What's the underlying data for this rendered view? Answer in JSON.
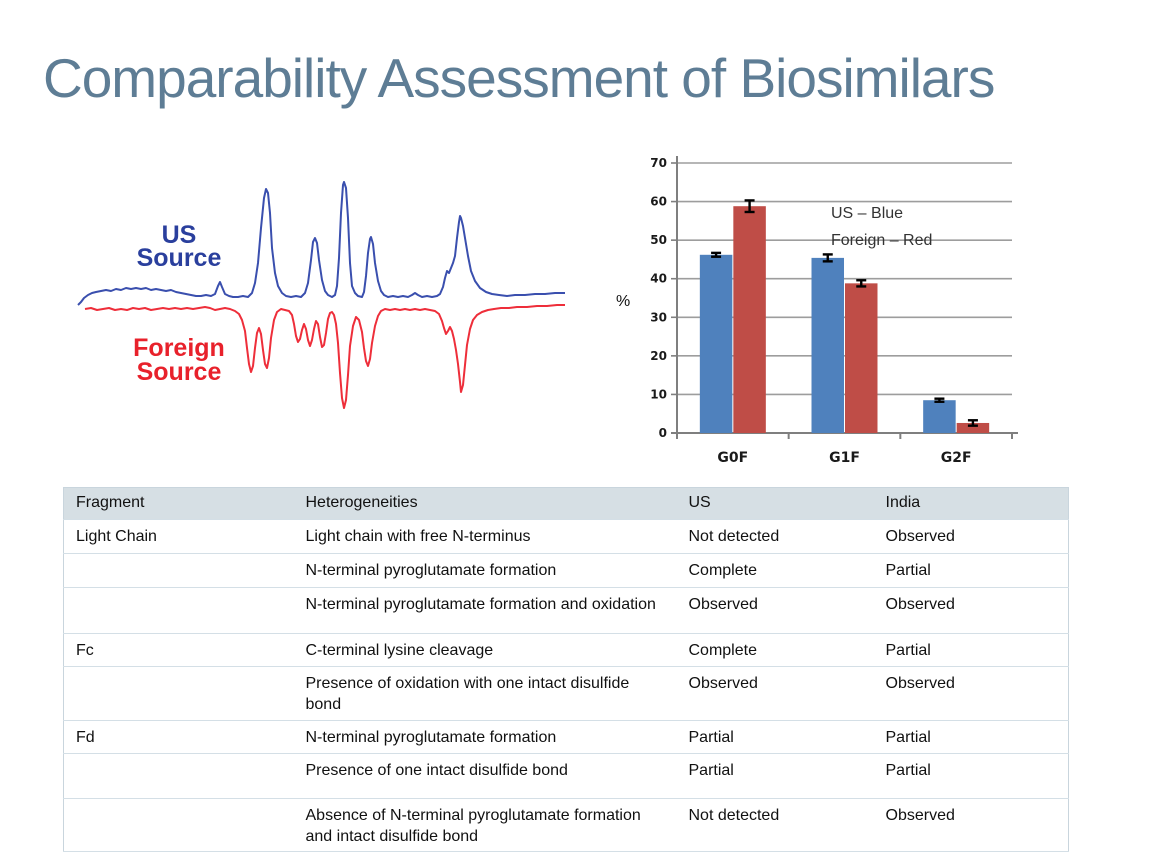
{
  "slide": {
    "title": "Comparability Assessment of Biosimilars"
  },
  "chromatogram": {
    "us_label_line1": "US",
    "us_label_line2": "Source",
    "foreign_label_line1": "Foreign",
    "foreign_label_line2": "Source",
    "us_color": "#2a3f9d",
    "foreign_color": "#e8212b"
  },
  "chart_data": {
    "type": "bar",
    "title": "",
    "xlabel": "",
    "ylabel": "%",
    "categories": [
      "G0F",
      "G1F",
      "G2F"
    ],
    "series": [
      {
        "name": "US",
        "color": "#4f81bd",
        "values": [
          46.2,
          45.4,
          8.5
        ],
        "errors": [
          0.5,
          0.9,
          0.4
        ]
      },
      {
        "name": "Foreign",
        "color": "#bf4d47",
        "values": [
          58.8,
          38.8,
          2.6
        ],
        "errors": [
          1.5,
          0.8,
          0.7
        ]
      }
    ],
    "ylim": [
      0,
      70
    ],
    "yticks": [
      0,
      10,
      20,
      30,
      40,
      50,
      60,
      70
    ],
    "grid": true,
    "legend_lines": [
      "US – Blue",
      "Foreign – Red"
    ],
    "legend_position": "inside-top-right"
  },
  "table": {
    "headers": [
      "Fragment",
      "Heterogeneities",
      "US",
      "India"
    ],
    "rows": [
      {
        "fragment": "Light Chain",
        "heterogeneity": "Light chain with free N-terminus",
        "us": "Not detected",
        "india": "Observed"
      },
      {
        "fragment": "",
        "heterogeneity": "N-terminal pyroglutamate formation",
        "us": "Complete",
        "india": "Partial"
      },
      {
        "fragment": "",
        "heterogeneity": "N-terminal pyroglutamate formation and oxidation",
        "us": "Observed",
        "india": "Observed"
      },
      {
        "fragment": "Fc",
        "heterogeneity": "C-terminal lysine cleavage",
        "us": "Complete",
        "india": "Partial"
      },
      {
        "fragment": "",
        "heterogeneity": "Presence of oxidation with one intact disulfide bond",
        "us": "Observed",
        "india": "Observed"
      },
      {
        "fragment": "Fd",
        "heterogeneity": "N-terminal pyroglutamate formation",
        "us": "Partial",
        "india": "Partial"
      },
      {
        "fragment": "",
        "heterogeneity": "Presence of one intact disulfide bond",
        "us": "Partial",
        "india": "Partial"
      },
      {
        "fragment": "",
        "heterogeneity": "Absence of N-terminal pyroglutamate formation and intact disulfide bond",
        "us": "Not detected",
        "india": "Observed"
      }
    ]
  },
  "colors": {
    "title": "#5e7d95",
    "table_header_bg": "#d6dfe4",
    "table_border": "#c9d5dd",
    "bar_blue": "#4f81bd",
    "bar_red": "#bf4d47",
    "gridline": "#9d9d9d",
    "axis": "#7f7f7f"
  }
}
